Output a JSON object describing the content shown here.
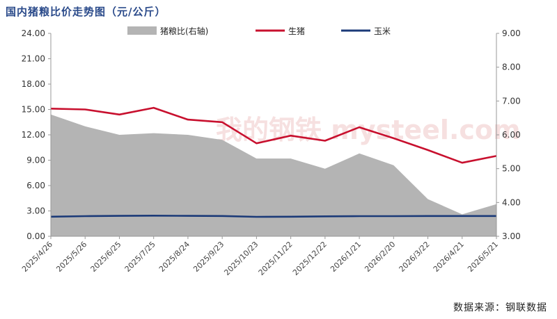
{
  "chart_data": {
    "type": "line",
    "title": "国内猪粮比价走势图（元/公斤）",
    "source": "数据来源：钢联数据",
    "x": [
      "2025/4/26",
      "2025/5/26",
      "2025/6/25",
      "2025/7/25",
      "2025/8/24",
      "2025/9/23",
      "2025/10/23",
      "2025/11/22",
      "2025/12/22",
      "2026/1/21",
      "2026/2/20",
      "2026/3/22",
      "2026/4/21",
      "2026/5/21"
    ],
    "ylim_left": [
      0,
      24
    ],
    "yticks_left": [
      "0.00",
      "3.00",
      "6.00",
      "9.00",
      "12.00",
      "15.00",
      "18.00",
      "21.00",
      "24.00"
    ],
    "ylim_right": [
      3,
      9
    ],
    "yticks_right": [
      "3.00",
      "4.00",
      "5.00",
      "6.00",
      "7.00",
      "8.00",
      "9.00"
    ],
    "series": [
      {
        "name": "猪粮比(右轴)",
        "type": "area",
        "axis": "right",
        "color": "#b4b4b4",
        "values": [
          6.6,
          6.25,
          6.0,
          6.05,
          6.0,
          5.85,
          5.3,
          5.3,
          5.0,
          5.45,
          5.1,
          4.1,
          3.65,
          3.95
        ]
      },
      {
        "name": "生猪",
        "type": "line",
        "axis": "left",
        "color": "#c8102e",
        "values": [
          15.1,
          15.0,
          14.4,
          15.2,
          13.8,
          13.5,
          11.0,
          11.9,
          11.3,
          12.9,
          11.6,
          10.2,
          8.7,
          9.5
        ]
      },
      {
        "name": "玉米",
        "type": "line",
        "axis": "left",
        "color": "#1b3a78",
        "values": [
          2.32,
          2.38,
          2.42,
          2.44,
          2.42,
          2.4,
          2.3,
          2.32,
          2.36,
          2.38,
          2.38,
          2.4,
          2.4,
          2.4
        ]
      }
    ],
    "legend": "top",
    "watermark": "我的钢铁 mysteel.com"
  }
}
